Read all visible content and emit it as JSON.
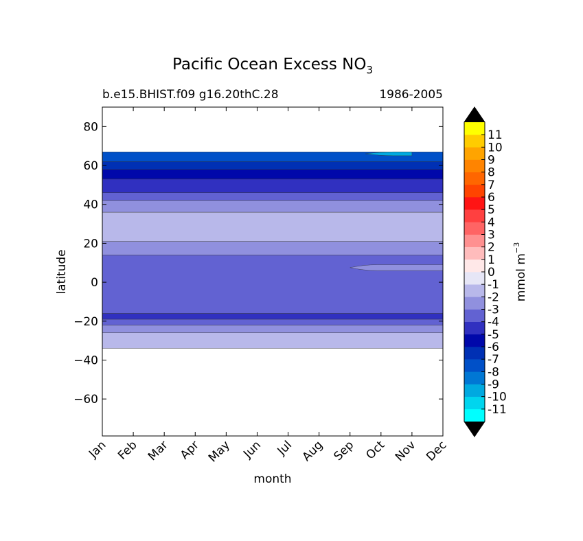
{
  "chart_data": {
    "type": "heatmap",
    "title": "Pacific Ocean Excess NO",
    "title_subscript": "3",
    "subtitle_left": "b.e15.BHIST.f09 g16.20thC.28",
    "subtitle_right": "1986-2005",
    "xlabel": "month",
    "ylabel": "latitude",
    "x_categories": [
      "Jan",
      "Feb",
      "Mar",
      "Apr",
      "May",
      "Jun",
      "Jul",
      "Aug",
      "Sep",
      "Oct",
      "Nov",
      "Dec"
    ],
    "xlim": [
      0,
      11
    ],
    "ylim": [
      -79,
      90
    ],
    "y_ticks": [
      80,
      60,
      40,
      20,
      0,
      -20,
      -40,
      -60
    ],
    "y_tick_labels": [
      "80",
      "60",
      "40",
      "20",
      "0",
      "−20",
      "−40",
      "−60"
    ],
    "data_lat_range": [
      -34,
      67
    ],
    "colorbar": {
      "label": "mmol m",
      "label_superscript": "−3",
      "levels": [
        -12,
        -11,
        -10,
        -9,
        -8,
        -7,
        -6,
        -5,
        -4,
        -3,
        -2,
        -1,
        0,
        1,
        2,
        3,
        4,
        5,
        6,
        7,
        8,
        9,
        10,
        11,
        12
      ],
      "tick_labels": [
        "-11",
        "-10",
        "-9",
        "-8",
        "-7",
        "-6",
        "-5",
        "-4",
        "-3",
        "-2",
        "-1",
        "0",
        "1",
        "2",
        "3",
        "4",
        "5",
        "6",
        "7",
        "8",
        "9",
        "10",
        "11"
      ],
      "colors": [
        "#00ffff",
        "#00d5ee",
        "#00a9e0",
        "#0077d4",
        "#0050c8",
        "#0030b4",
        "#0008aa",
        "#3030c0",
        "#6262d2",
        "#9090de",
        "#b8b8ea",
        "#e6e6f6",
        "#ffe8e8",
        "#ffbcbc",
        "#ff9090",
        "#ff6464",
        "#ff4040",
        "#ff1414",
        "#ff4400",
        "#ff6600",
        "#ff8400",
        "#ffa400",
        "#ffcc00",
        "#ffff00"
      ],
      "extend_colors": [
        "#000000",
        "#000000"
      ]
    },
    "bands": [
      {
        "lat": [
          -34,
          -26
        ],
        "value": -1.5,
        "color": "#b8b8ea"
      },
      {
        "lat": [
          -26,
          -22
        ],
        "value": -2.5,
        "color": "#9090de"
      },
      {
        "lat": [
          -22,
          -19
        ],
        "value": -3.5,
        "color": "#6262d2"
      },
      {
        "lat": [
          -19,
          -16
        ],
        "value": -4.5,
        "color": "#3030c0"
      },
      {
        "lat": [
          -16,
          14
        ],
        "value": -3.5,
        "color": "#6262d2"
      },
      {
        "lat": [
          14,
          21
        ],
        "value": -2.5,
        "color": "#9090de"
      },
      {
        "lat": [
          21,
          36
        ],
        "value": -1.5,
        "color": "#b8b8ea"
      },
      {
        "lat": [
          36,
          42
        ],
        "value": -2.5,
        "color": "#9090de"
      },
      {
        "lat": [
          42,
          46
        ],
        "value": -3.5,
        "color": "#6262d2"
      },
      {
        "lat": [
          46,
          53
        ],
        "value": -4.5,
        "color": "#3030c0"
      },
      {
        "lat": [
          53,
          58
        ],
        "value": -5.5,
        "color": "#0008aa"
      },
      {
        "lat": [
          58,
          62
        ],
        "value": -6.5,
        "color": "#0030b4"
      },
      {
        "lat": [
          62,
          67
        ],
        "value": -7.5,
        "color": "#0050c8"
      }
    ],
    "patches": [
      {
        "month": [
          8,
          11
        ],
        "lat": [
          6,
          9
        ],
        "value": -2.5,
        "color": "#9090de"
      },
      {
        "month": [
          8.5,
          10
        ],
        "lat": [
          65,
          67
        ],
        "value": -9.5,
        "color": "#00a9e0"
      }
    ]
  }
}
